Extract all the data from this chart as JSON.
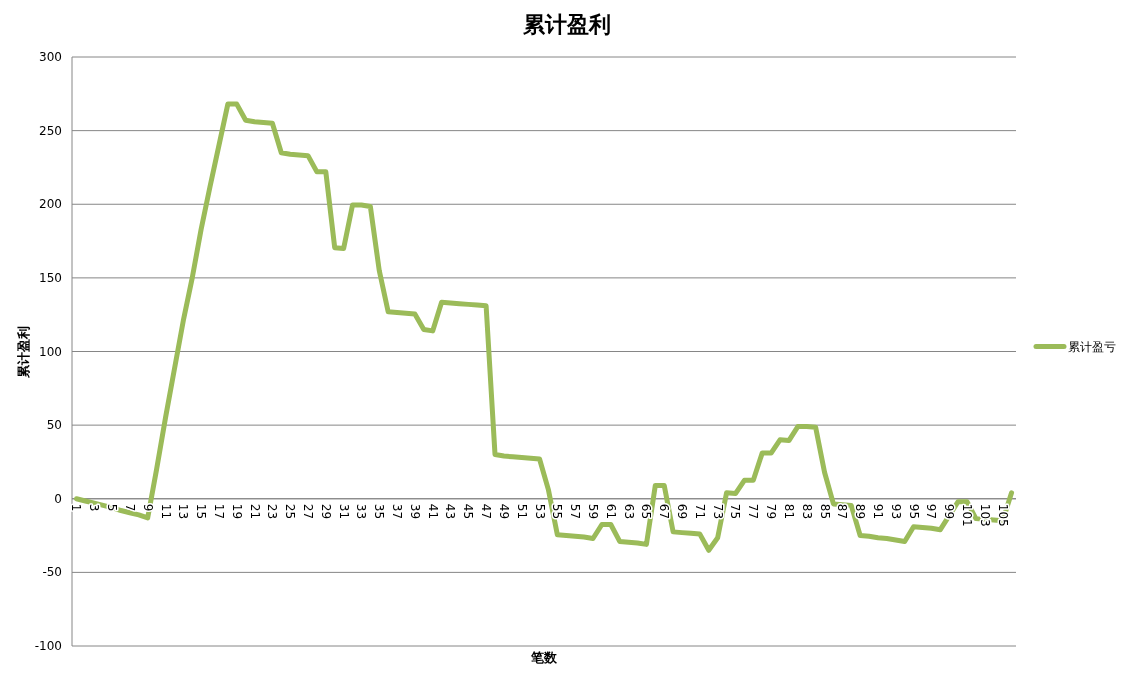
{
  "chart_data": {
    "type": "line",
    "title": "累计盈利",
    "xlabel": "笔数",
    "ylabel": "累计盈利",
    "categories": [
      "1",
      null,
      "3",
      null,
      "5",
      null,
      "7",
      null,
      "9",
      null,
      "11",
      null,
      "13",
      null,
      "15",
      null,
      "17",
      null,
      "19",
      null,
      "21",
      null,
      "23",
      null,
      "25",
      null,
      "27",
      null,
      "29",
      null,
      "31",
      null,
      "33",
      null,
      "35",
      null,
      "37",
      null,
      "39",
      null,
      "41",
      null,
      "43",
      null,
      "45",
      null,
      "47",
      null,
      "49",
      null,
      "51",
      null,
      "53",
      null,
      "55",
      null,
      "57",
      null,
      "59",
      null,
      "61",
      null,
      "63",
      null,
      "65",
      null,
      "67",
      null,
      "69",
      null,
      "71",
      null,
      "73",
      null,
      "75",
      null,
      "77",
      null,
      "79",
      null,
      "81",
      null,
      "83",
      null,
      "85",
      null,
      "87",
      null,
      "89",
      null,
      "91",
      null,
      "93",
      null,
      "95",
      null,
      "97",
      null,
      "99",
      null,
      "101",
      null,
      "103",
      null,
      "105",
      null
    ],
    "series": [
      {
        "name": "累计盈亏",
        "color": "#9bbb59",
        "values": [
          0,
          -1.5,
          -3,
          -4.5,
          -6,
          -8,
          -9.5,
          -11,
          -13,
          20,
          55,
          88,
          121,
          150,
          183,
          212,
          240,
          268,
          268,
          257,
          256,
          255.5,
          255,
          235,
          234,
          233.5,
          233,
          222,
          222,
          170.5,
          170,
          199.5,
          199.5,
          198.5,
          155,
          127,
          126.5,
          126,
          125.5,
          115,
          114,
          133.5,
          133,
          132.5,
          132,
          131.5,
          131,
          30,
          29,
          28.5,
          28,
          27.5,
          27,
          6,
          -24.5,
          -25,
          -25.5,
          -26,
          -27,
          -17.5,
          -17.5,
          -29,
          -29.5,
          -30,
          -31,
          9,
          9,
          -22.5,
          -23,
          -23.5,
          -24,
          -35,
          -26.5,
          4,
          3.5,
          12.5,
          12.5,
          31,
          31,
          40,
          39.5,
          49,
          49,
          48.5,
          18,
          -3.5,
          -4,
          -4.5,
          -25,
          -25.5,
          -26.5,
          -27,
          -28,
          -29,
          -19,
          -19.5,
          -20,
          -21,
          -11.5,
          -2,
          -2,
          -13.5,
          -14,
          -14.5,
          -15,
          4
        ]
      }
    ],
    "ylim": [
      -100,
      300
    ],
    "yticks": [
      -100,
      -50,
      0,
      50,
      100,
      150,
      200,
      250,
      300
    ],
    "grid": "y",
    "legend": "right",
    "marker": "none",
    "line_style": "solid"
  }
}
